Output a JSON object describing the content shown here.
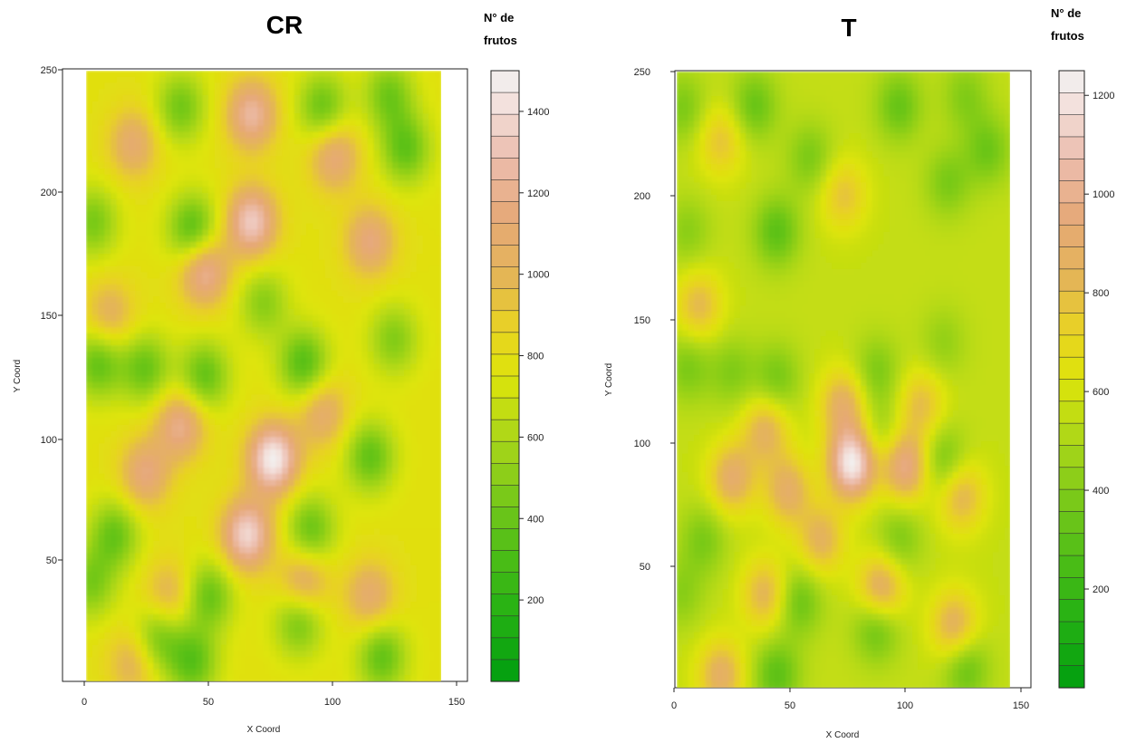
{
  "chart_data": [
    {
      "type": "heatmap",
      "title": "CR",
      "xlabel": "X Coord",
      "ylabel": "Y Coord",
      "xlim": [
        0,
        150
      ],
      "ylim": [
        0,
        250
      ],
      "x_ticks": [
        "0",
        "50",
        "100",
        "150"
      ],
      "y_ticks": [
        "50",
        "100",
        "150",
        "200",
        "250"
      ],
      "legend_title": [
        "N° de",
        "frutos"
      ],
      "legend_ticks": [
        "1400",
        "1200",
        "1000",
        "800",
        "600",
        "400",
        "200"
      ],
      "value_range": [
        0,
        1500
      ],
      "baseline": 780,
      "hotspots": [
        {
          "x": 40,
          "y": 235,
          "v": 430
        },
        {
          "x": 70,
          "y": 232,
          "v": 1250
        },
        {
          "x": 100,
          "y": 235,
          "v": 400
        },
        {
          "x": 128,
          "y": 240,
          "v": 430
        },
        {
          "x": 135,
          "y": 218,
          "v": 380
        },
        {
          "x": 20,
          "y": 220,
          "v": 1100
        },
        {
          "x": 105,
          "y": 215,
          "v": 1150
        },
        {
          "x": 45,
          "y": 185,
          "v": 330
        },
        {
          "x": 70,
          "y": 188,
          "v": 1340
        },
        {
          "x": 50,
          "y": 168,
          "v": 1250
        },
        {
          "x": 120,
          "y": 180,
          "v": 1150
        },
        {
          "x": 3,
          "y": 188,
          "v": 450
        },
        {
          "x": 10,
          "y": 150,
          "v": 1050
        },
        {
          "x": 75,
          "y": 155,
          "v": 500
        },
        {
          "x": 5,
          "y": 130,
          "v": 380
        },
        {
          "x": 25,
          "y": 128,
          "v": 400
        },
        {
          "x": 50,
          "y": 125,
          "v": 380
        },
        {
          "x": 92,
          "y": 130,
          "v": 330
        },
        {
          "x": 130,
          "y": 140,
          "v": 480
        },
        {
          "x": 40,
          "y": 105,
          "v": 1200
        },
        {
          "x": 79,
          "y": 91,
          "v": 1480
        },
        {
          "x": 100,
          "y": 110,
          "v": 1100
        },
        {
          "x": 120,
          "y": 92,
          "v": 380
        },
        {
          "x": 25,
          "y": 85,
          "v": 1150
        },
        {
          "x": 68,
          "y": 60,
          "v": 1380
        },
        {
          "x": 12,
          "y": 60,
          "v": 400
        },
        {
          "x": 95,
          "y": 62,
          "v": 400
        },
        {
          "x": 92,
          "y": 40,
          "v": 1150
        },
        {
          "x": 35,
          "y": 35,
          "v": 1050
        },
        {
          "x": 52,
          "y": 35,
          "v": 400
        },
        {
          "x": 90,
          "y": 25,
          "v": 400
        },
        {
          "x": 120,
          "y": 35,
          "v": 1100
        },
        {
          "x": 30,
          "y": 18,
          "v": 420
        },
        {
          "x": 45,
          "y": 8,
          "v": 360
        },
        {
          "x": 20,
          "y": 8,
          "v": 1050
        },
        {
          "x": 125,
          "y": 10,
          "v": 380
        },
        {
          "x": 2,
          "y": 40,
          "v": 460
        }
      ]
    },
    {
      "type": "heatmap",
      "title": "T",
      "xlabel": "X Coord",
      "ylabel": "Y Coord",
      "xlim": [
        0,
        150
      ],
      "ylim": [
        0,
        250
      ],
      "x_ticks": [
        "0",
        "50",
        "100",
        "150"
      ],
      "y_ticks": [
        "50",
        "100",
        "150",
        "200",
        "250"
      ],
      "legend_title": [
        "N° de",
        "frutos"
      ],
      "legend_ticks": [
        "1200",
        "1000",
        "800",
        "600",
        "400",
        "200"
      ],
      "value_range": [
        0,
        1250
      ],
      "baseline": 560,
      "hotspots": [
        {
          "x": 3,
          "y": 235,
          "v": 380
        },
        {
          "x": 35,
          "y": 236,
          "v": 330
        },
        {
          "x": 100,
          "y": 236,
          "v": 330
        },
        {
          "x": 130,
          "y": 240,
          "v": 400
        },
        {
          "x": 140,
          "y": 218,
          "v": 350
        },
        {
          "x": 60,
          "y": 215,
          "v": 380
        },
        {
          "x": 122,
          "y": 205,
          "v": 380
        },
        {
          "x": 45,
          "y": 185,
          "v": 300
        },
        {
          "x": 5,
          "y": 185,
          "v": 420
        },
        {
          "x": 20,
          "y": 222,
          "v": 780
        },
        {
          "x": 75,
          "y": 200,
          "v": 780
        },
        {
          "x": 10,
          "y": 155,
          "v": 820
        },
        {
          "x": 5,
          "y": 130,
          "v": 380
        },
        {
          "x": 25,
          "y": 128,
          "v": 400
        },
        {
          "x": 45,
          "y": 125,
          "v": 360
        },
        {
          "x": 90,
          "y": 128,
          "v": 380
        },
        {
          "x": 120,
          "y": 140,
          "v": 440
        },
        {
          "x": 40,
          "y": 105,
          "v": 860
        },
        {
          "x": 75,
          "y": 115,
          "v": 880
        },
        {
          "x": 110,
          "y": 115,
          "v": 800
        },
        {
          "x": 79,
          "y": 91,
          "v": 1230
        },
        {
          "x": 103,
          "y": 90,
          "v": 1000
        },
        {
          "x": 120,
          "y": 92,
          "v": 340
        },
        {
          "x": 25,
          "y": 85,
          "v": 900
        },
        {
          "x": 50,
          "y": 80,
          "v": 880
        },
        {
          "x": 128,
          "y": 78,
          "v": 850
        },
        {
          "x": 65,
          "y": 60,
          "v": 850
        },
        {
          "x": 12,
          "y": 60,
          "v": 380
        },
        {
          "x": 92,
          "y": 102,
          "v": 420
        },
        {
          "x": 100,
          "y": 60,
          "v": 380
        },
        {
          "x": 40,
          "y": 38,
          "v": 850
        },
        {
          "x": 92,
          "y": 40,
          "v": 940
        },
        {
          "x": 55,
          "y": 35,
          "v": 330
        },
        {
          "x": 90,
          "y": 25,
          "v": 300
        },
        {
          "x": 125,
          "y": 25,
          "v": 880
        },
        {
          "x": 45,
          "y": 5,
          "v": 300
        },
        {
          "x": 20,
          "y": 5,
          "v": 880
        },
        {
          "x": 130,
          "y": 8,
          "v": 320
        },
        {
          "x": 2,
          "y": 38,
          "v": 420
        }
      ]
    }
  ]
}
